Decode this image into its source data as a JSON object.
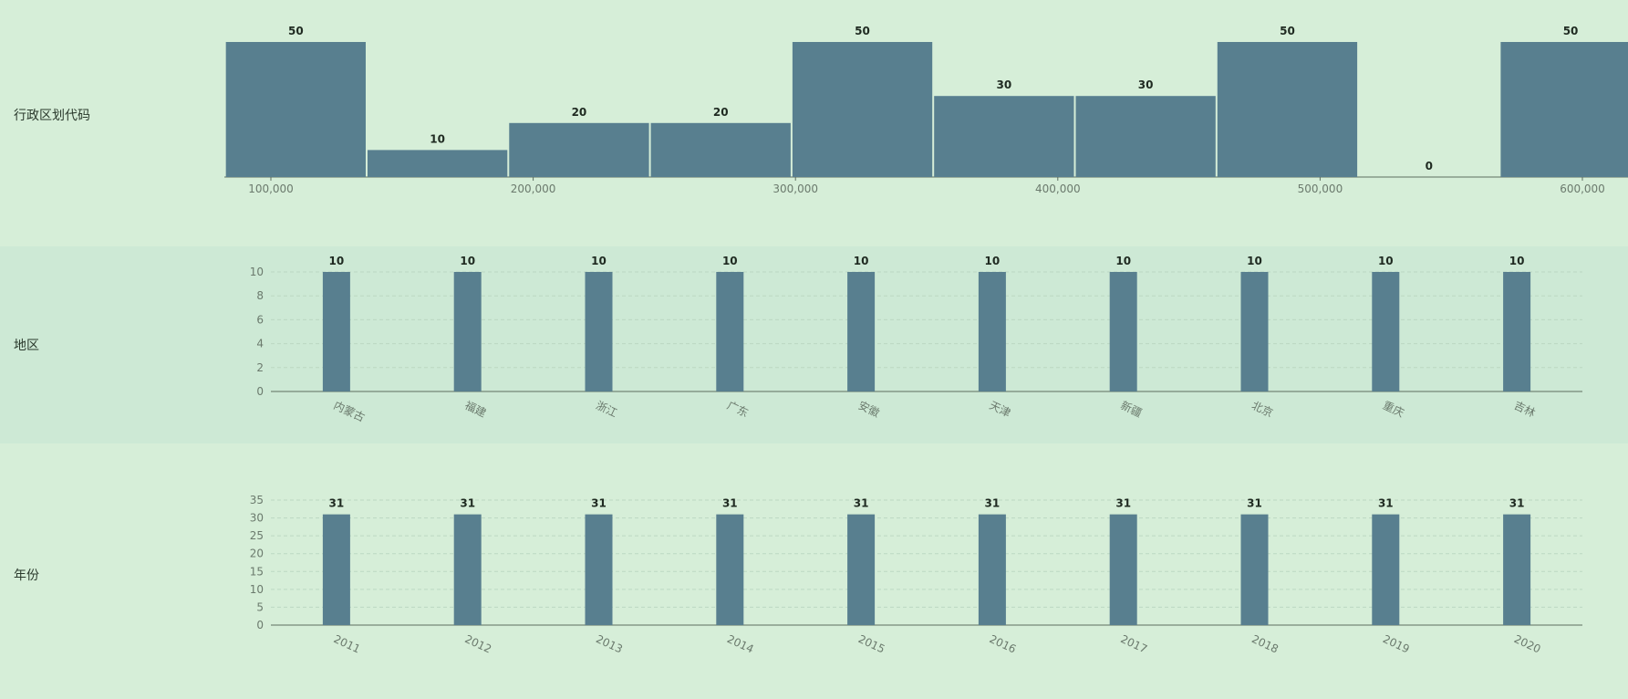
{
  "theme": {
    "background": "#d6eed8",
    "band": "#cde9d5",
    "bar": "#587f8f",
    "grid": "#bcd8c2"
  },
  "rows": [
    {
      "label": "行政区划代码"
    },
    {
      "label": "地区"
    },
    {
      "label": "年份"
    }
  ],
  "chart_data": [
    {
      "type": "bar",
      "subtype": "histogram",
      "xlim": [
        100000,
        600000
      ],
      "x_ticks": [
        "100,000",
        "200,000",
        "300,000",
        "400,000",
        "500,000",
        "600,000"
      ],
      "bins": [
        {
          "from": 82500,
          "to": 136500,
          "value": 50
        },
        {
          "from": 136500,
          "to": 190500,
          "value": 10
        },
        {
          "from": 190500,
          "to": 244500,
          "value": 20
        },
        {
          "from": 244500,
          "to": 298500,
          "value": 20
        },
        {
          "from": 298500,
          "to": 352500,
          "value": 50
        },
        {
          "from": 352500,
          "to": 406500,
          "value": 30
        },
        {
          "from": 406500,
          "to": 460500,
          "value": 30
        },
        {
          "from": 460500,
          "to": 514500,
          "value": 50
        },
        {
          "from": 514500,
          "to": 568500,
          "value": 0
        },
        {
          "from": 568500,
          "to": 622500,
          "value": 50
        }
      ],
      "grid": false,
      "legend": "none"
    },
    {
      "type": "bar",
      "categories": [
        "内蒙古",
        "福建",
        "浙江",
        "广东",
        "安徽",
        "天津",
        "新疆",
        "北京",
        "重庆",
        "吉林"
      ],
      "values": [
        10,
        10,
        10,
        10,
        10,
        10,
        10,
        10,
        10,
        10
      ],
      "ylim": [
        0,
        10
      ],
      "y_ticks": [
        0,
        2,
        4,
        6,
        8,
        10
      ],
      "grid": true,
      "legend": "none"
    },
    {
      "type": "bar",
      "categories": [
        "2011",
        "2012",
        "2013",
        "2014",
        "2015",
        "2016",
        "2017",
        "2018",
        "2019",
        "2020"
      ],
      "values": [
        31,
        31,
        31,
        31,
        31,
        31,
        31,
        31,
        31,
        31
      ],
      "ylim": [
        0,
        35
      ],
      "y_ticks": [
        0,
        5,
        10,
        15,
        20,
        25,
        30,
        35
      ],
      "grid": true,
      "legend": "none"
    }
  ]
}
